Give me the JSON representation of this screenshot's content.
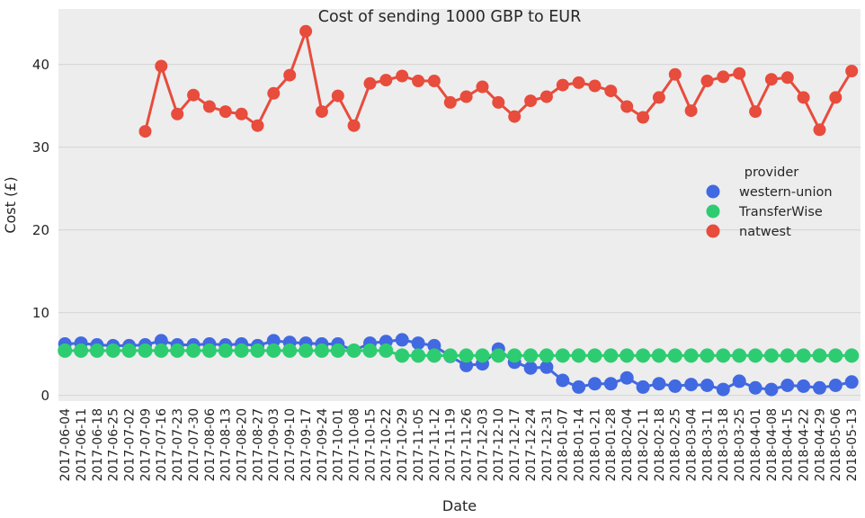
{
  "figure": {
    "title": "Cost of sending 1000 GBP to EUR",
    "xlabel": "Date",
    "ylabel": "Cost (£)"
  },
  "chart_data": {
    "type": "line",
    "title": "Cost of sending 1000 GBP to EUR",
    "xlabel": "Date",
    "ylabel": "Cost (£)",
    "legend_title": "provider",
    "legend_position": "center-right",
    "grid": "horizontal",
    "yticks": [
      0,
      10,
      20,
      30,
      40
    ],
    "ylim": [
      -0.7,
      46.7
    ],
    "styles": {
      "axes_bg": "#EDEDEE",
      "fig_bg": "#FFFFFF",
      "grid_color": "#D8D8D8",
      "text_color": "#262626"
    },
    "x": [
      "2017-06-04",
      "2017-06-11",
      "2017-06-18",
      "2017-06-25",
      "2017-07-02",
      "2017-07-09",
      "2017-07-16",
      "2017-07-23",
      "2017-07-30",
      "2017-08-06",
      "2017-08-13",
      "2017-08-20",
      "2017-08-27",
      "2017-09-03",
      "2017-09-10",
      "2017-09-17",
      "2017-09-24",
      "2017-10-01",
      "2017-10-08",
      "2017-10-15",
      "2017-10-22",
      "2017-10-29",
      "2017-11-05",
      "2017-11-12",
      "2017-11-19",
      "2017-11-26",
      "2017-12-03",
      "2017-12-10",
      "2017-12-17",
      "2017-12-24",
      "2017-12-31",
      "2018-01-07",
      "2018-01-14",
      "2018-01-21",
      "2018-01-28",
      "2018-02-04",
      "2018-02-11",
      "2018-02-18",
      "2018-02-25",
      "2018-03-04",
      "2018-03-11",
      "2018-03-18",
      "2018-03-25",
      "2018-04-01",
      "2018-04-08",
      "2018-04-15",
      "2018-04-22",
      "2018-04-29",
      "2018-05-06",
      "2018-05-13"
    ],
    "series": [
      {
        "name": "western-union",
        "color": "#4169E1",
        "values": [
          6.2,
          6.3,
          6.1,
          6.0,
          6.0,
          6.1,
          6.6,
          6.1,
          6.1,
          6.2,
          6.1,
          6.2,
          6.0,
          6.6,
          6.4,
          6.3,
          6.2,
          6.2,
          5.4,
          6.3,
          6.5,
          6.7,
          6.3,
          6.0,
          4.7,
          3.6,
          3.8,
          5.6,
          4.0,
          3.3,
          3.4,
          1.8,
          1.0,
          1.4,
          1.4,
          2.1,
          1.0,
          1.4,
          1.1,
          1.3,
          1.2,
          0.7,
          1.7,
          0.9,
          0.7,
          1.2,
          1.1,
          0.9,
          1.2,
          1.6
        ]
      },
      {
        "name": "TransferWise",
        "color": "#2ECC71",
        "values": [
          5.4,
          5.4,
          5.4,
          5.4,
          5.4,
          5.4,
          5.4,
          5.4,
          5.4,
          5.4,
          5.4,
          5.4,
          5.4,
          5.4,
          5.4,
          5.4,
          5.4,
          5.4,
          5.4,
          5.4,
          5.4,
          4.8,
          4.8,
          4.8,
          4.8,
          4.8,
          4.8,
          4.8,
          4.8,
          4.8,
          4.8,
          4.8,
          4.8,
          4.8,
          4.8,
          4.8,
          4.8,
          4.8,
          4.8,
          4.8,
          4.8,
          4.8,
          4.8,
          4.8,
          4.8,
          4.8,
          4.8,
          4.8,
          4.8,
          4.8
        ]
      },
      {
        "name": "natwest",
        "color": "#E74C3C",
        "values": [
          null,
          null,
          null,
          null,
          null,
          31.9,
          39.8,
          34.0,
          36.3,
          34.9,
          34.3,
          34.0,
          32.6,
          36.5,
          38.7,
          44.0,
          34.3,
          36.2,
          32.6,
          37.7,
          38.1,
          38.6,
          38.0,
          38.0,
          35.4,
          36.1,
          37.3,
          35.4,
          33.7,
          35.6,
          36.1,
          37.5,
          37.8,
          37.4,
          36.8,
          34.9,
          33.6,
          36.0,
          38.8,
          34.4,
          38.0,
          38.5,
          38.9,
          34.3,
          38.2,
          38.4,
          36.0,
          32.1,
          36.0,
          39.2
        ]
      }
    ]
  }
}
